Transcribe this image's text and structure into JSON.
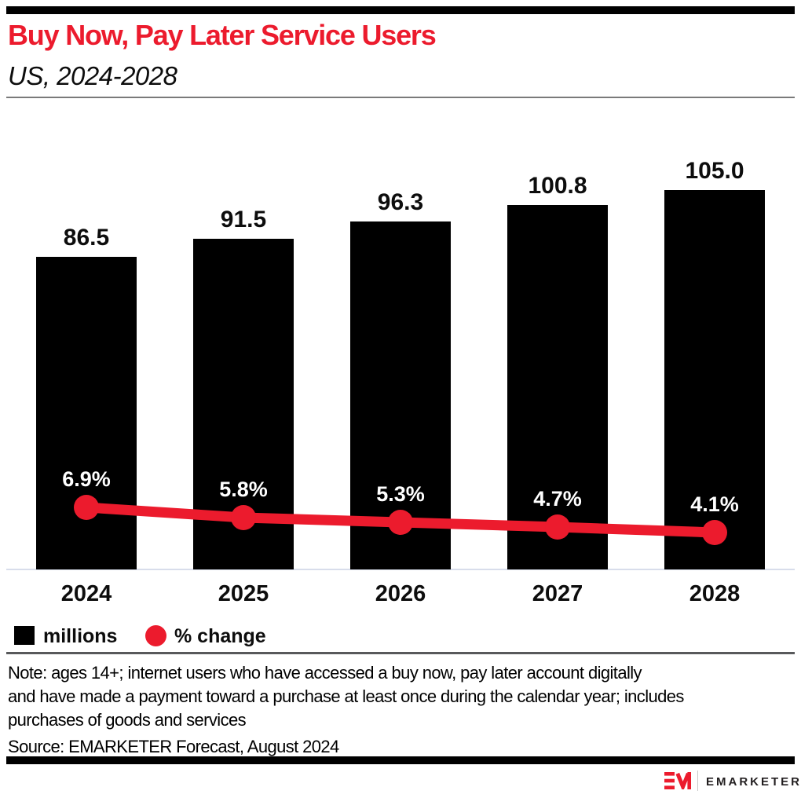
{
  "header": {
    "title": "Buy Now, Pay Later Service Users",
    "subtitle": "US, 2024-2028"
  },
  "chart_data": {
    "type": "combo",
    "categories": [
      "2024",
      "2025",
      "2026",
      "2027",
      "2028"
    ],
    "series": [
      {
        "name": "millions",
        "type": "bar",
        "color": "#000000",
        "values": [
          86.5,
          91.5,
          96.3,
          100.8,
          105.0
        ],
        "labels": [
          "86.5",
          "91.5",
          "96.3",
          "100.8",
          "105.0"
        ]
      },
      {
        "name": "% change",
        "type": "line",
        "color": "#EC1B2D",
        "values": [
          6.9,
          5.8,
          5.3,
          4.7,
          4.1
        ],
        "labels": [
          "6.9%",
          "5.8%",
          "5.3%",
          "4.7%",
          "4.1%"
        ]
      }
    ],
    "ylim": [
      0,
      110
    ],
    "grid": false,
    "legend_position": "bottom-left",
    "xlabel": "",
    "ylabel": ""
  },
  "legend": {
    "items": [
      {
        "label": "millions",
        "swatch": "square",
        "color": "#000000"
      },
      {
        "label": "% change",
        "swatch": "circle",
        "color": "#EC1B2D"
      }
    ]
  },
  "footer": {
    "note_lines": [
      "Note: ages 14+; internet users who have accessed a buy now, pay later account digitally",
      "and have made a payment toward a purchase at least once during the calendar year; includes",
      "purchases of goods and services"
    ],
    "source": "Source: EMARKETER Forecast, August 2024"
  },
  "logo": {
    "mark": "EM",
    "text": "EMARKETER"
  },
  "colors": {
    "accent_red": "#EC1B2D",
    "bar_black": "#000000",
    "axis_line": "#d8ddeb",
    "header_rule": "#7a7a7a",
    "legend_rule": "#58595b"
  }
}
